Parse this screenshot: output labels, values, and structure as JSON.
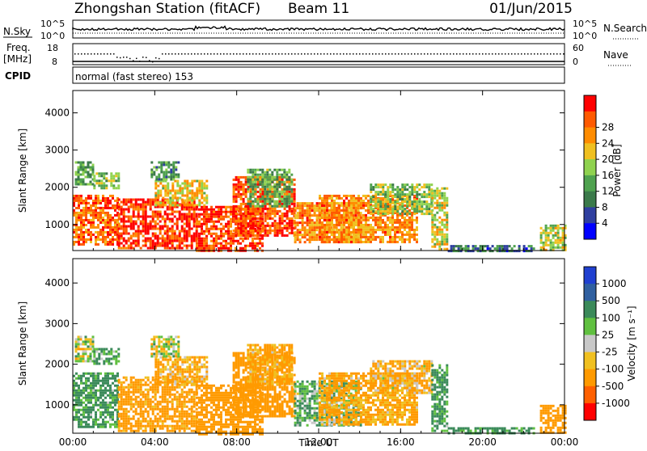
{
  "header": {
    "station": "Zhongshan Station (fitACF)",
    "beam": "Beam 11",
    "date": "01/Jun/2015"
  },
  "status_panels": {
    "nsky": {
      "label": "N.Sky",
      "ticks": [
        "10^5",
        "10^0"
      ]
    },
    "nsearch": {
      "label": "N.Search",
      "ticks": [
        "10^5",
        "10^0"
      ]
    },
    "freq": {
      "label_line1": "Freq.",
      "label_line2": "[MHz]",
      "ticks": [
        "18",
        "8"
      ]
    },
    "nave": {
      "label": "Nave",
      "ticks": [
        "60",
        "0"
      ]
    },
    "cpid": {
      "label": "CPID",
      "mode_text": "normal (fast stereo) 153"
    }
  },
  "colors": {
    "power_scale": [
      "#0000ff",
      "#2f3f9f",
      "#3b7a4a",
      "#4fa24f",
      "#8fd24f",
      "#f0c020",
      "#ff8c00",
      "#ff5a00",
      "#ff0000"
    ],
    "velocity_scale": [
      "#2040d0",
      "#3060a0",
      "#3b8a5a",
      "#60c040",
      "#c8c8c8",
      "#f0c020",
      "#ff9a00",
      "#ff6000",
      "#ff0000"
    ]
  },
  "chart_data": [
    {
      "type": "heatmap",
      "name": "power",
      "ylabel": "Slant Range [km]",
      "yticks": [
        "1000",
        "2000",
        "3000",
        "4000"
      ],
      "ylim": [
        300,
        4600
      ],
      "colorbar": {
        "label": "Power [dB]",
        "ticks": [
          "4",
          "8",
          "12",
          "16",
          "20",
          "24",
          "28"
        ],
        "range": [
          0,
          30
        ]
      },
      "regions": [
        {
          "t": [
            0.0,
            2.2
          ],
          "r": [
            450,
            1800
          ],
          "level": 24
        },
        {
          "t": [
            0.1,
            1.0
          ],
          "r": [
            2100,
            2700
          ],
          "level": 12
        },
        {
          "t": [
            1.0,
            2.2
          ],
          "r": [
            2000,
            2400
          ],
          "level": 14
        },
        {
          "t": [
            2.2,
            6.0
          ],
          "r": [
            350,
            1700
          ],
          "level": 27
        },
        {
          "t": [
            4.0,
            6.5
          ],
          "r": [
            1500,
            2200
          ],
          "level": 18
        },
        {
          "t": [
            3.8,
            5.2
          ],
          "r": [
            2200,
            2700
          ],
          "level": 10
        },
        {
          "t": [
            6.0,
            9.2
          ],
          "r": [
            300,
            1500
          ],
          "level": 26
        },
        {
          "t": [
            7.8,
            10.8
          ],
          "r": [
            700,
            2300
          ],
          "level": 26
        },
        {
          "t": [
            8.5,
            10.7
          ],
          "r": [
            1500,
            2500
          ],
          "level": 12
        },
        {
          "t": [
            10.8,
            14.0
          ],
          "r": [
            500,
            1600
          ],
          "level": 22
        },
        {
          "t": [
            12.0,
            16.8
          ],
          "r": [
            500,
            1800
          ],
          "level": 22
        },
        {
          "t": [
            14.5,
            17.5
          ],
          "r": [
            1300,
            2100
          ],
          "level": 14
        },
        {
          "t": [
            17.5,
            18.3
          ],
          "r": [
            350,
            2000
          ],
          "level": 17
        },
        {
          "t": [
            18.3,
            22.5
          ],
          "r": [
            300,
            450
          ],
          "level": 8
        },
        {
          "t": [
            22.8,
            24.0
          ],
          "r": [
            300,
            1000
          ],
          "level": 16
        }
      ]
    },
    {
      "type": "heatmap",
      "name": "velocity",
      "ylabel": "Slant Range [km]",
      "yticks": [
        "1000",
        "2000",
        "3000",
        "4000"
      ],
      "ylim": [
        300,
        4600
      ],
      "xlabel": "Time UT",
      "xticks": [
        "00:00",
        "04:00",
        "08:00",
        "12:00",
        "16:00",
        "20:00",
        "00:00"
      ],
      "xlim": [
        0,
        24
      ],
      "colorbar": {
        "label": "Velocity [m s⁻¹]",
        "ticks": [
          "1000",
          "500",
          "100",
          "25",
          "-25",
          "-100",
          "-500",
          "-1000"
        ]
      },
      "regions": [
        {
          "t": [
            0.0,
            2.2
          ],
          "r": [
            450,
            1800
          ],
          "velocity": 150
        },
        {
          "t": [
            0.1,
            1.0
          ],
          "r": [
            2100,
            2700
          ],
          "velocity": 0
        },
        {
          "t": [
            1.0,
            2.2
          ],
          "r": [
            2000,
            2400
          ],
          "velocity": 120
        },
        {
          "t": [
            2.2,
            6.0
          ],
          "r": [
            350,
            1700
          ],
          "velocity": -200
        },
        {
          "t": [
            4.0,
            6.5
          ],
          "r": [
            1500,
            2200
          ],
          "velocity": -120
        },
        {
          "t": [
            3.8,
            5.2
          ],
          "r": [
            2200,
            2700
          ],
          "velocity": 0
        },
        {
          "t": [
            6.0,
            9.2
          ],
          "r": [
            300,
            1500
          ],
          "velocity": -300
        },
        {
          "t": [
            7.8,
            10.8
          ],
          "r": [
            700,
            2300
          ],
          "velocity": -250
        },
        {
          "t": [
            8.5,
            10.7
          ],
          "r": [
            1500,
            2500
          ],
          "velocity": -150
        },
        {
          "t": [
            10.8,
            14.0
          ],
          "r": [
            500,
            1600
          ],
          "velocity": 100
        },
        {
          "t": [
            12.0,
            16.8
          ],
          "r": [
            500,
            1800
          ],
          "velocity": -150
        },
        {
          "t": [
            14.5,
            17.5
          ],
          "r": [
            1300,
            2100
          ],
          "velocity": -100
        },
        {
          "t": [
            17.5,
            18.3
          ],
          "r": [
            350,
            2000
          ],
          "velocity": 150
        },
        {
          "t": [
            18.3,
            22.5
          ],
          "r": [
            300,
            450
          ],
          "velocity": 150
        },
        {
          "t": [
            22.8,
            24.0
          ],
          "r": [
            300,
            1000
          ],
          "velocity": -300
        }
      ]
    }
  ]
}
